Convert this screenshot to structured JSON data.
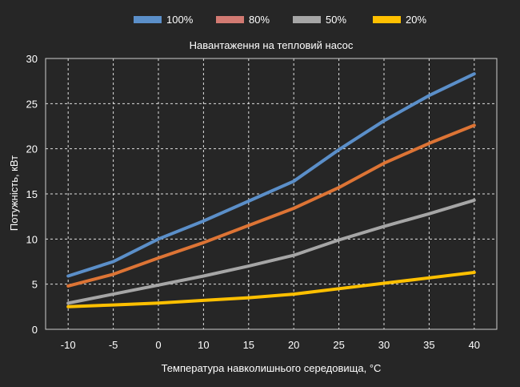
{
  "chart_data": {
    "type": "line",
    "title": "Навантаження на тепловий насос",
    "xlabel": "Температура навколишнього середовища, °C",
    "ylabel": "Потужність, кВт",
    "x": [
      -10,
      -5,
      0,
      10,
      15,
      20,
      25,
      30,
      35,
      40
    ],
    "x_tick_labels": [
      "-10",
      "-5",
      "0",
      "10",
      "15",
      "20",
      "25",
      "30",
      "35",
      "40"
    ],
    "y_ticks": [
      0,
      5,
      10,
      15,
      20,
      25,
      30
    ],
    "ylim": [
      0,
      30
    ],
    "grid": true,
    "legend_position": "top",
    "series": [
      {
        "name": "100%",
        "color": "#5b8fc9",
        "values": [
          5.9,
          7.5,
          10.0,
          12.0,
          14.2,
          16.4,
          19.9,
          23.1,
          25.9,
          28.3
        ]
      },
      {
        "name": "80%",
        "color": "#dd7435",
        "legend_color": "#d27a72",
        "values": [
          4.8,
          6.1,
          7.9,
          9.6,
          11.5,
          13.4,
          15.7,
          18.4,
          20.6,
          22.6
        ]
      },
      {
        "name": "50%",
        "color": "#a6a6a6",
        "values": [
          2.9,
          3.9,
          4.9,
          5.9,
          7.0,
          8.2,
          9.9,
          11.4,
          12.8,
          14.3
        ]
      },
      {
        "name": "20%",
        "color": "#ffc000",
        "values": [
          2.5,
          2.7,
          2.9,
          3.2,
          3.5,
          3.9,
          4.5,
          5.1,
          5.7,
          6.3
        ]
      }
    ]
  }
}
